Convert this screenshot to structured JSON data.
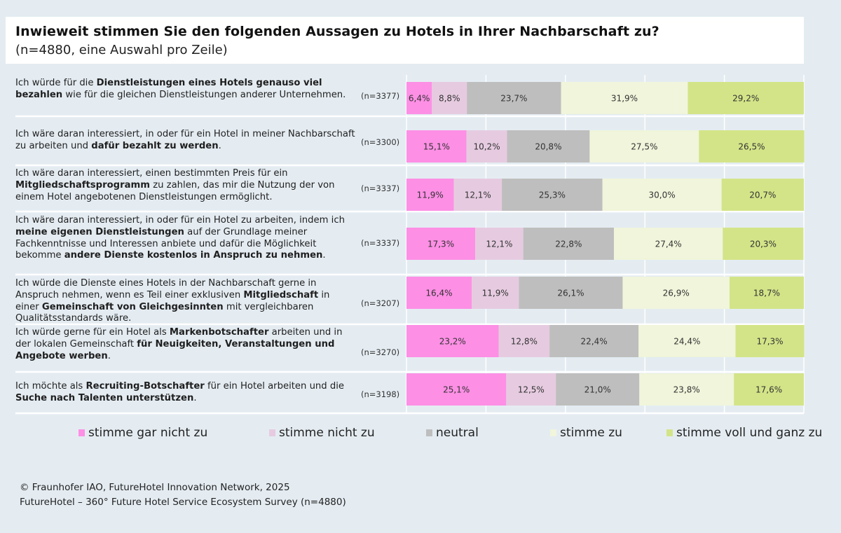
{
  "chart_data": {
    "type": "bar",
    "orientation": "horizontal",
    "stacked": true,
    "title": "Inwieweit stimmen Sie den folgenden Aussagen zu Hotels in Ihrer Nachbarschaft zu?",
    "subtitle": "(n=4880, eine Auswahl pro Zeile)",
    "xlabel": "",
    "ylabel": "",
    "xlim": [
      0,
      100
    ],
    "grid": true,
    "legend_position": "bottom",
    "categories": [
      {
        "segments": [
          {
            "text": "Ich würde für die ",
            "bold": false
          },
          {
            "text": "Dienstleistungen eines Hotels genauso viel bezahlen",
            "bold": true
          },
          {
            "text": " wie für die gleichen Dienstleistungen anderer Unternehmen.",
            "bold": false
          }
        ],
        "n": "(n=3377)"
      },
      {
        "segments": [
          {
            "text": "Ich wäre daran interessiert, in oder für ein Hotel in meiner Nachbarschaft zu arbeiten und ",
            "bold": false
          },
          {
            "text": "dafür bezahlt zu werden",
            "bold": true
          },
          {
            "text": ".",
            "bold": false
          }
        ],
        "n": "(n=3300)"
      },
      {
        "segments": [
          {
            "text": "Ich wäre daran interessiert, einen bestimmten Preis für ein ",
            "bold": false
          },
          {
            "text": "Mitgliedschaftsprogramm",
            "bold": true
          },
          {
            "text": " zu zahlen, das mir die Nutzung der von einem Hotel angebotenen Dienstleistungen ermöglicht.",
            "bold": false
          }
        ],
        "n": "(n=3337)"
      },
      {
        "segments": [
          {
            "text": "Ich wäre daran interessiert, in oder für ein Hotel zu arbeiten, indem ich ",
            "bold": false
          },
          {
            "text": "meine eigenen Dienstleistungen",
            "bold": true
          },
          {
            "text": " auf der Grundlage meiner Fachkenntnisse und Interessen anbiete und dafür die Möglichkeit bekomme ",
            "bold": false
          },
          {
            "text": "andere Dienste kostenlos in Anspruch zu nehmen",
            "bold": true
          },
          {
            "text": ".",
            "bold": false
          }
        ],
        "n": "(n=3337)"
      },
      {
        "segments": [
          {
            "text": "Ich würde die Dienste eines Hotels in der Nachbarschaft gerne in Anspruch nehmen, wenn es Teil einer exklusiven ",
            "bold": false
          },
          {
            "text": "Mitgliedschaft",
            "bold": true
          },
          {
            "text": " in einer ",
            "bold": false
          },
          {
            "text": "Gemeinschaft von Gleichgesinnten",
            "bold": true
          },
          {
            "text": " mit vergleichbaren Qualitätsstandards wäre.",
            "bold": false
          }
        ],
        "n": "(n=3207)"
      },
      {
        "segments": [
          {
            "text": "Ich würde gerne für ein Hotel als ",
            "bold": false
          },
          {
            "text": "Markenbotschafter",
            "bold": true
          },
          {
            "text": " arbeiten und in der lokalen Gemeinschaft ",
            "bold": false
          },
          {
            "text": "für Neuigkeiten, Veranstaltungen und Angebote werben",
            "bold": true
          },
          {
            "text": ".",
            "bold": false
          }
        ],
        "n": "(n=3270)"
      },
      {
        "segments": [
          {
            "text": "Ich möchte als ",
            "bold": false
          },
          {
            "text": "Recruiting-Botschafter",
            "bold": true
          },
          {
            "text": " für ein Hotel arbeiten und die ",
            "bold": false
          },
          {
            "text": "Suche nach Talenten unterstützen",
            "bold": true
          },
          {
            "text": ".",
            "bold": false
          }
        ],
        "n": "(n=3198)"
      }
    ],
    "series": [
      {
        "name": "stimme gar nicht zu",
        "color": "#fd8fe5",
        "values": [
          6.4,
          15.1,
          11.9,
          17.3,
          16.4,
          23.2,
          25.1
        ],
        "labels": [
          "6,4%",
          "15,1%",
          "11,9%",
          "17,3%",
          "16,4%",
          "23,2%",
          "25,1%"
        ]
      },
      {
        "name": "stimme nicht zu",
        "color": "#e6cbe0",
        "values": [
          8.8,
          10.2,
          12.1,
          12.1,
          11.9,
          12.8,
          12.5
        ],
        "labels": [
          "8,8%",
          "10,2%",
          "12,1%",
          "12,1%",
          "11,9%",
          "12,8%",
          "12,5%"
        ]
      },
      {
        "name": "neutral",
        "color": "#bebebe",
        "values": [
          23.7,
          20.8,
          25.3,
          22.8,
          26.1,
          22.4,
          21.0
        ],
        "labels": [
          "23,7%",
          "20,8%",
          "25,3%",
          "22,8%",
          "26,1%",
          "22,4%",
          "21,0%"
        ]
      },
      {
        "name": "stimme zu",
        "color": "#f0f5db",
        "values": [
          31.9,
          27.5,
          30.0,
          27.4,
          26.9,
          24.4,
          23.8
        ],
        "labels": [
          "31,9%",
          "27,5%",
          "30,0%",
          "27,4%",
          "26,9%",
          "24,4%",
          "23,8%"
        ]
      },
      {
        "name": "stimme voll und ganz zu",
        "color": "#d3e488",
        "values": [
          29.2,
          26.5,
          20.7,
          20.3,
          18.7,
          17.3,
          17.6
        ],
        "labels": [
          "29,2%",
          "26,5%",
          "20,7%",
          "20,3%",
          "18,7%",
          "17,3%",
          "17,6%"
        ]
      }
    ]
  },
  "footer": {
    "line1": "© Fraunhofer IAO, FutureHotel Innovation Network, 2025",
    "line2": "FutureHotel – 360° Future Hotel Service Ecosystem Survey (n=4880)"
  }
}
